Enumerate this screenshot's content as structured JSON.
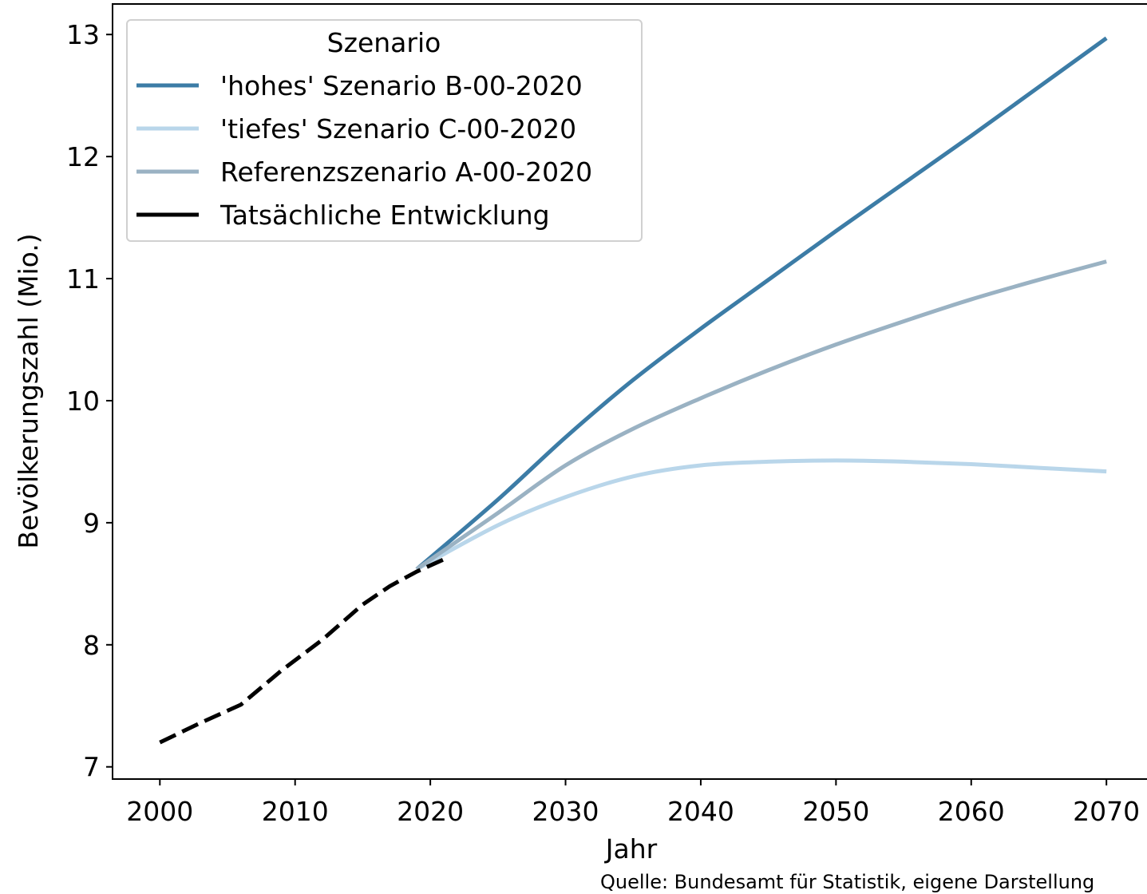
{
  "chart_data": {
    "type": "line",
    "xlabel": "Jahr",
    "ylabel": "Bevölkerungszahl (Mio.)",
    "xlim": [
      1996.5,
      2073
    ],
    "ylim": [
      6.9,
      13.25
    ],
    "xticks": [
      2000,
      2010,
      2020,
      2030,
      2040,
      2050,
      2060,
      2070
    ],
    "yticks": [
      7,
      8,
      9,
      10,
      11,
      12,
      13
    ],
    "legend": {
      "title": "Szenario",
      "position": "top-left"
    },
    "source": "Quelle: Bundesamt für Statistik, eigene Darstellung",
    "series": [
      {
        "name": "'hohes' Szenario B-00-2020",
        "color": "#3c7ca6",
        "style": "solid",
        "x": [
          2019,
          2025,
          2030,
          2035,
          2040,
          2045,
          2050,
          2055,
          2060,
          2065,
          2070
        ],
        "y": [
          8.62,
          9.19,
          9.7,
          10.17,
          10.59,
          10.99,
          11.39,
          11.78,
          12.17,
          12.57,
          12.97
        ]
      },
      {
        "name": "'tiefes' Szenario C-00-2020",
        "color": "#b9d6ea",
        "style": "solid",
        "x": [
          2019,
          2025,
          2030,
          2035,
          2040,
          2045,
          2050,
          2055,
          2060,
          2065,
          2070
        ],
        "y": [
          8.62,
          8.98,
          9.21,
          9.38,
          9.47,
          9.5,
          9.51,
          9.5,
          9.48,
          9.45,
          9.42
        ]
      },
      {
        "name": "Referenzszenario A-00-2020",
        "color": "#9ab2c3",
        "style": "solid",
        "x": [
          2019,
          2025,
          2030,
          2035,
          2040,
          2045,
          2050,
          2055,
          2060,
          2065,
          2070
        ],
        "y": [
          8.62,
          9.08,
          9.47,
          9.77,
          10.02,
          10.25,
          10.46,
          10.65,
          10.83,
          10.99,
          11.14
        ]
      },
      {
        "name": "Tatsächliche Entwicklung",
        "color": "#000000",
        "style": "dashed",
        "x": [
          2000,
          2003,
          2006,
          2009,
          2012,
          2015,
          2017,
          2019,
          2021
        ],
        "y": [
          7.2,
          7.36,
          7.51,
          7.79,
          8.04,
          8.33,
          8.48,
          8.6,
          8.7
        ]
      }
    ]
  }
}
